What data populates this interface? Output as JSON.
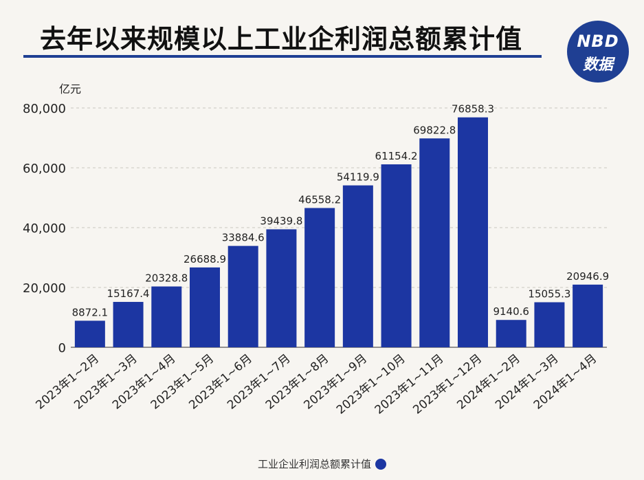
{
  "header": {
    "title": "去年以来规模以上工业企利润总额累计值",
    "logo_top": "NBD",
    "logo_bottom": "数据"
  },
  "colors": {
    "bar": "#1c36a2",
    "accent": "#1f3f93",
    "grid": "#c9c6c0",
    "background": "#f7f5f1"
  },
  "chart_data": {
    "type": "bar",
    "ylabel": "亿元",
    "ylim": [
      0,
      80000
    ],
    "yticks": [
      0,
      20000,
      40000,
      60000,
      80000
    ],
    "ytick_labels": [
      "0",
      "20,000",
      "40,000",
      "60,000",
      "80,000"
    ],
    "categories": [
      "2023年1~2月",
      "2023年1~3月",
      "2023年1~4月",
      "2023年1~5月",
      "2023年1~6月",
      "2023年1~7月",
      "2023年1~8月",
      "2023年1~9月",
      "2023年1~10月",
      "2023年1~11月",
      "2023年1~12月",
      "2024年1~2月",
      "2024年1~3月",
      "2024年1~4月"
    ],
    "values": [
      8872.1,
      15167.4,
      20328.8,
      26688.9,
      33884.6,
      39439.8,
      46558.2,
      54119.9,
      61154.2,
      69822.8,
      76858.3,
      9140.6,
      15055.3,
      20946.9
    ],
    "value_labels": [
      "8872.1",
      "15167.4",
      "20328.8",
      "26688.9",
      "33884.6",
      "39439.8",
      "46558.2",
      "54119.9",
      "61154.2",
      "69822.8",
      "76858.3",
      "9140.6",
      "15055.3",
      "20946.9"
    ],
    "legend": [
      "工业企业利润总额累计值"
    ],
    "legend_position": "bottom",
    "grid": true
  }
}
